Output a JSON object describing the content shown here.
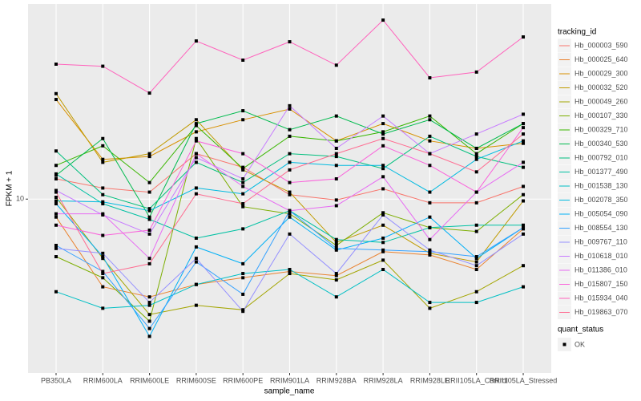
{
  "chart_data": {
    "type": "line",
    "x_label": "sample_name",
    "y_label": "FPKM + 1",
    "log_y": true,
    "grid": true,
    "categories": [
      "PB350LA",
      "RRIM600LA",
      "RRIM600LE",
      "RRIM600SE",
      "RRIM600PE",
      "RRIM901LA",
      "RRIM928BA",
      "RRIM928LA",
      "RRIM928LE",
      "RRII105LA_Control",
      "RRII105LA_Stressed"
    ],
    "ylim": [
      1.47,
      86
    ],
    "yticks": [
      10
    ],
    "legend_title": "tracking_id",
    "shape_legend": {
      "title": "quant_status",
      "label": "OK"
    },
    "series": [
      {
        "name": "Hb_000003_590",
        "color": "#F8766D",
        "values": [
          12.5,
          11.3,
          10.8,
          16.5,
          14.2,
          10.5,
          9.9,
          11.2,
          9.6,
          9.6,
          11.5
        ]
      },
      {
        "name": "Hb_000025_640",
        "color": "#EA8331",
        "values": [
          8.2,
          3.8,
          3.4,
          3.9,
          4.2,
          4.5,
          4.3,
          5.6,
          5.4,
          4.6,
          7.2
        ]
      },
      {
        "name": "Hb_000029_300",
        "color": "#D89000",
        "values": [
          30,
          15.5,
          16,
          21,
          24,
          27,
          19,
          23,
          19,
          17.5,
          18.5
        ]
      },
      {
        "name": "Hb_000032_520",
        "color": "#C09B00",
        "values": [
          32,
          15,
          16.5,
          24,
          13.8,
          10.8,
          6.2,
          7.5,
          5.5,
          5,
          9.8
        ]
      },
      {
        "name": "Hb_000049_260",
        "color": "#A3A500",
        "values": [
          10.2,
          5.2,
          2.8,
          3.1,
          2.95,
          4.4,
          4.1,
          5.1,
          3.0,
          3.6,
          4.8
        ]
      },
      {
        "name": "Hb_000107_330",
        "color": "#7CAE00",
        "values": [
          5.3,
          4.2,
          2.6,
          19.5,
          9.2,
          8.5,
          6,
          8.6,
          7.3,
          7.0,
          10.5
        ]
      },
      {
        "name": "Hb_000329_710",
        "color": "#39B600",
        "values": [
          14.5,
          18,
          12,
          22.5,
          14,
          20,
          19,
          21,
          25,
          16.5,
          23
        ]
      },
      {
        "name": "Hb_000340_530",
        "color": "#00BB4E",
        "values": [
          13,
          19.5,
          8.2,
          23,
          26.5,
          21.5,
          25,
          20.5,
          24,
          17.5,
          23
        ]
      },
      {
        "name": "Hb_000792_010",
        "color": "#00BF7D",
        "values": [
          17,
          10.5,
          9,
          15,
          12,
          16.5,
          16,
          14,
          20,
          16,
          14.2
        ]
      },
      {
        "name": "Hb_001377_490",
        "color": "#00C1A3",
        "values": [
          13.2,
          9.5,
          8,
          6.5,
          7.2,
          8.8,
          6.4,
          6.2,
          7.3,
          7.5,
          7.5
        ]
      },
      {
        "name": "Hb_001538_130",
        "color": "#00BFC4",
        "values": [
          3.6,
          3,
          3.1,
          3.9,
          4.4,
          4.6,
          3.4,
          4.6,
          3.2,
          3.2,
          3.8
        ]
      },
      {
        "name": "Hb_002078_350",
        "color": "#00BAE0",
        "values": [
          9.8,
          9.7,
          8.8,
          11.3,
          10.6,
          15,
          14.5,
          14.5,
          10.8,
          15.5,
          19
        ]
      },
      {
        "name": "Hb_005054_090",
        "color": "#00B0F6",
        "values": [
          9.5,
          5.3,
          2.2,
          5.9,
          4.9,
          8.2,
          5.7,
          6.5,
          8.2,
          5.2,
          7.3
        ]
      },
      {
        "name": "Hb_008554_130",
        "color": "#35A2FF",
        "values": [
          6,
          4.5,
          2.4,
          5,
          3.5,
          8.8,
          5.8,
          5.7,
          5.6,
          5.3,
          7.3
        ]
      },
      {
        "name": "Hb_009767_110",
        "color": "#9590FF",
        "values": [
          5.8,
          5.5,
          3.2,
          5.2,
          2.9,
          6.8,
          4.4,
          8.4,
          5.7,
          4.8,
          6.8
        ]
      },
      {
        "name": "Hb_010618_010",
        "color": "#C77CFF",
        "values": [
          11,
          8.4,
          6.8,
          15.8,
          12.5,
          28,
          17.5,
          25,
          16.5,
          20.5,
          25.5
        ]
      },
      {
        "name": "Hb_011386_010",
        "color": "#E76BF3",
        "values": [
          8.5,
          8.5,
          5.2,
          16.5,
          11.5,
          8.8,
          9.3,
          12.8,
          6.4,
          10.8,
          15
        ]
      },
      {
        "name": "Hb_015807_150",
        "color": "#FA62DB",
        "values": [
          7.5,
          6.7,
          7.1,
          19,
          16.5,
          12,
          12.5,
          18,
          14.5,
          10.8,
          22
        ]
      },
      {
        "name": "Hb_015934_040",
        "color": "#FF62BC",
        "values": [
          44.3,
          43.3,
          32.2,
          57.2,
          46.3,
          56.7,
          43.8,
          72,
          38.1,
          40.6,
          59.8
        ]
      },
      {
        "name": "Hb_019863_070",
        "color": "#FF6C91",
        "values": [
          10.8,
          4.4,
          4.9,
          10.6,
          9.5,
          13.8,
          16.5,
          19.5,
          16.5,
          13.5,
          20.5
        ]
      }
    ]
  }
}
